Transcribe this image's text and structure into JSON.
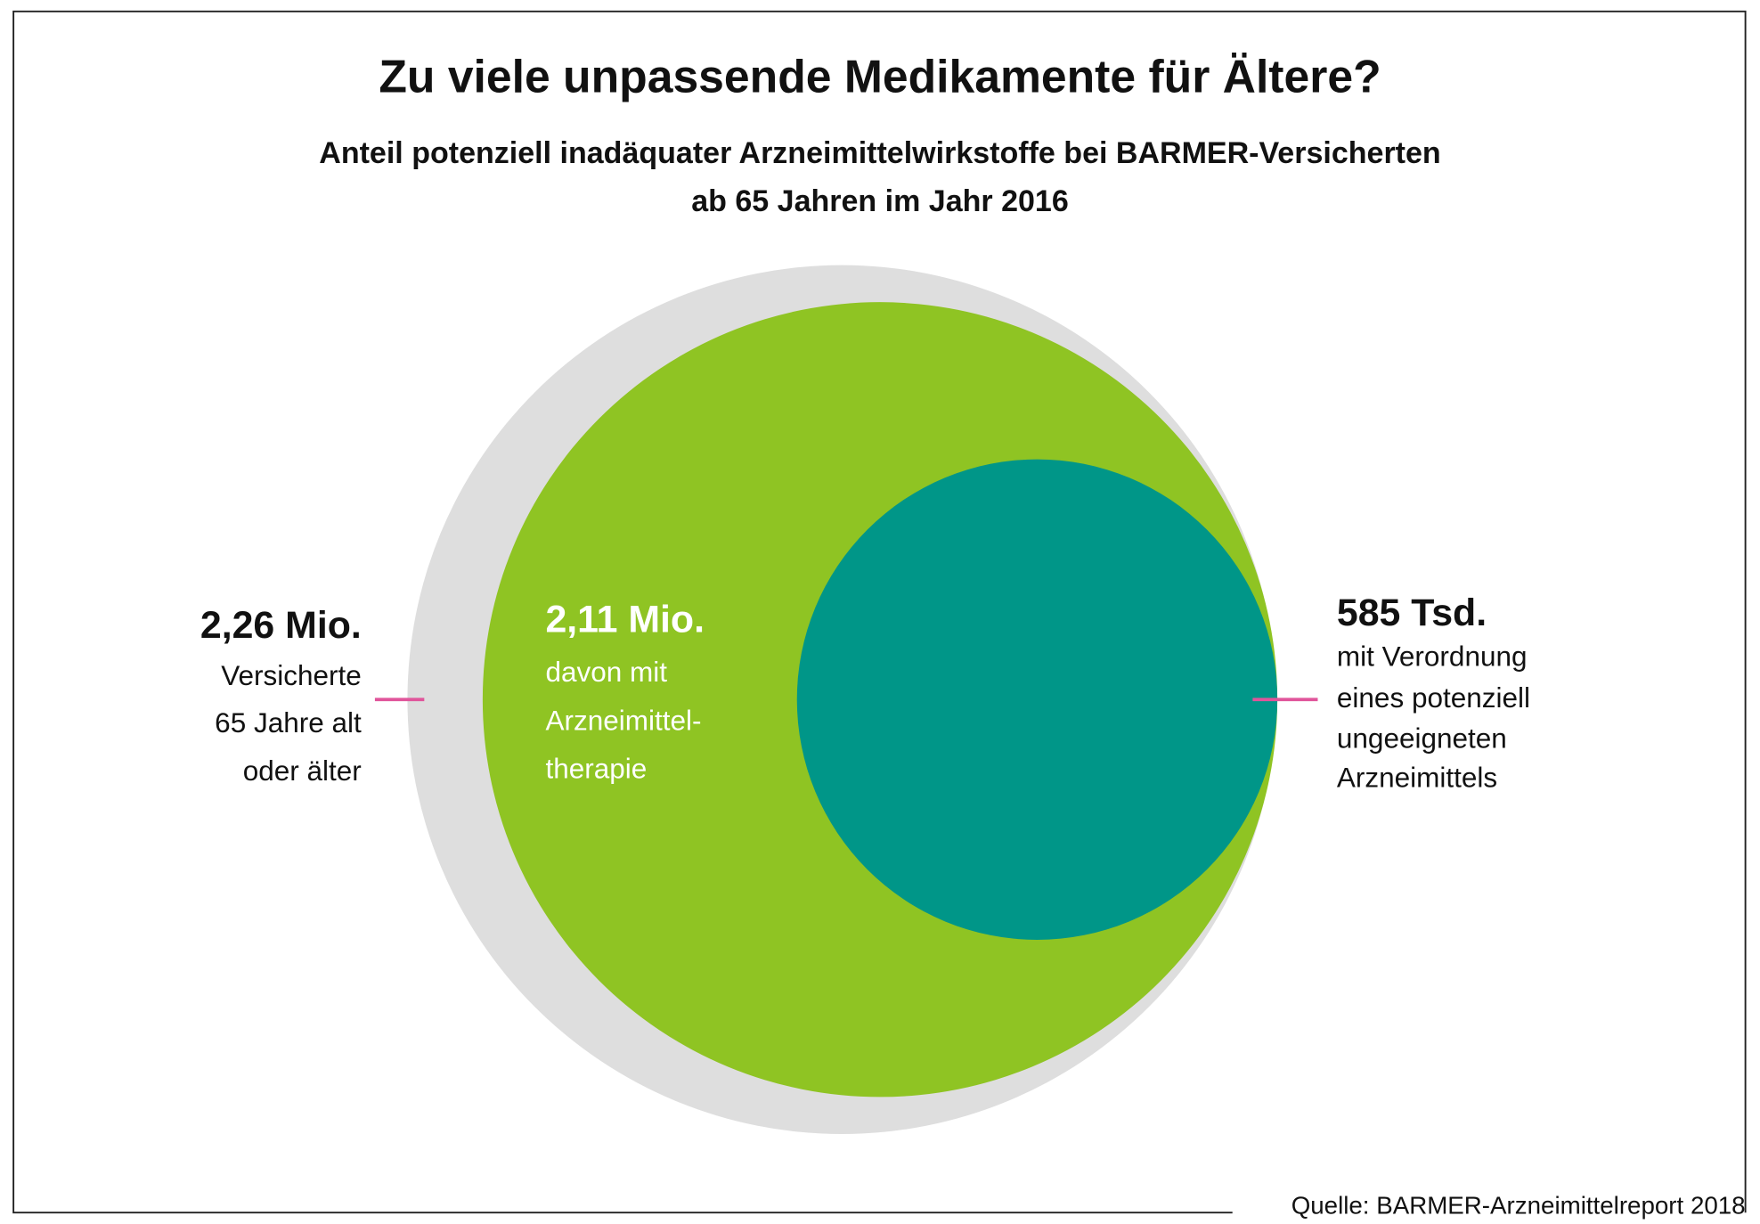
{
  "chart_data": {
    "type": "nested-circles",
    "title": "Zu viele unpassende Medikamente für Ältere?",
    "subtitle": [
      "Anteil potenziell inadäquater Arzneimittelwirkstoffe bei BARMER-Versicherten",
      "ab 65 Jahren im Jahr 2016"
    ],
    "items": [
      {
        "value_label": "2,26 Mio.",
        "value": 2260000,
        "lines": [
          "Versicherte",
          "65 Jahre alt",
          "oder älter"
        ],
        "color": "#dedede"
      },
      {
        "value_label": "2,11 Mio.",
        "value": 2110000,
        "lines": [
          "davon mit",
          "Arzneimittel-",
          "therapie"
        ],
        "color": "#8fc423"
      },
      {
        "value_label": "585 Tsd.",
        "value": 585000,
        "lines": [
          "mit Verordnung",
          "eines potenziell",
          "ungeeigneten",
          "Arzneimittels"
        ],
        "color": "#009688"
      }
    ],
    "marker_color": "#e0559b",
    "source": "Quelle: BARMER-Arzneimittelreport 2018"
  }
}
